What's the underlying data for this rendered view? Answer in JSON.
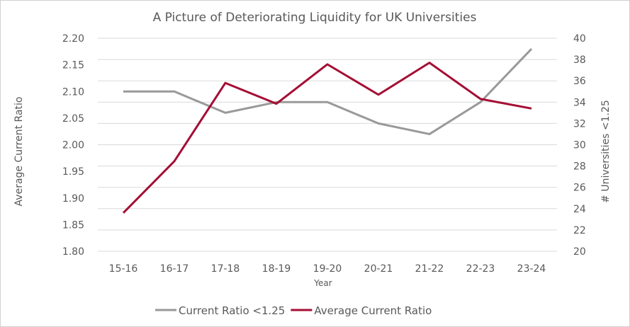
{
  "chart_data": {
    "type": "line",
    "title": "A Picture of Deteriorating Liquidity for UK Universities",
    "xlabel": "Year",
    "ylabel": "Average Current Ratio",
    "y2label": "# Universities <1.25",
    "categories": [
      "15-16",
      "16-17",
      "17-18",
      "18-19",
      "19-20",
      "20-21",
      "21-22",
      "22-23",
      "23-24"
    ],
    "ylim": [
      1.8,
      2.2
    ],
    "yticks": [
      "1.80",
      "1.85",
      "1.90",
      "1.95",
      "2.00",
      "2.05",
      "2.10",
      "2.15",
      "2.20"
    ],
    "y2lim": [
      20,
      40
    ],
    "y2ticks": [
      "20",
      "22",
      "24",
      "26",
      "28",
      "30",
      "32",
      "34",
      "36",
      "38",
      "40"
    ],
    "grid": true,
    "legend_position": "bottom",
    "series": [
      {
        "name": "Current Ratio <1.25",
        "axis": "right",
        "color": "#999999",
        "values": [
          35,
          35,
          33,
          34,
          34,
          32,
          31,
          34,
          39
        ]
      },
      {
        "name": "Average Current Ratio",
        "axis": "left",
        "color": "#A50E34",
        "values": [
          1.872,
          1.969,
          2.116,
          2.077,
          2.151,
          2.094,
          2.154,
          2.086,
          2.068
        ]
      }
    ]
  }
}
